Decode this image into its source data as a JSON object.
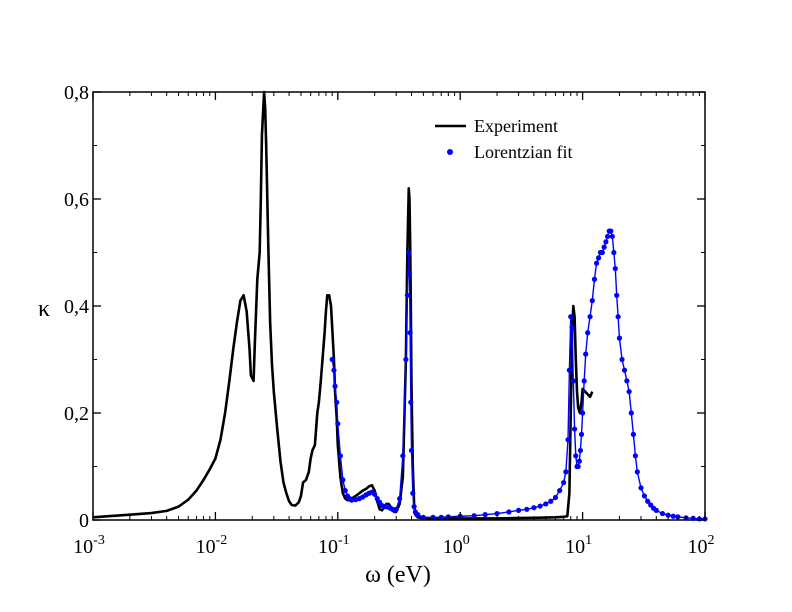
{
  "chart_data": {
    "type": "line",
    "title": "",
    "xlabel": "ω (eV)",
    "ylabel": "κ",
    "xscale": "log",
    "xlim": [
      0.001,
      100
    ],
    "ylim": [
      0,
      0.8
    ],
    "x_ticks": [
      {
        "value": 0.001,
        "base": "10",
        "exp": "-3"
      },
      {
        "value": 0.01,
        "base": "10",
        "exp": "-2"
      },
      {
        "value": 0.1,
        "base": "10",
        "exp": "-1"
      },
      {
        "value": 1,
        "base": "10",
        "exp": "0"
      },
      {
        "value": 10,
        "base": "10",
        "exp": "1"
      },
      {
        "value": 100,
        "base": "10",
        "exp": "2"
      }
    ],
    "y_ticks": [
      {
        "value": 0,
        "label": "0"
      },
      {
        "value": 0.2,
        "label": "0,2"
      },
      {
        "value": 0.4,
        "label": "0,4"
      },
      {
        "value": 0.6,
        "label": "0,6"
      },
      {
        "value": 0.8,
        "label": "0,8"
      }
    ],
    "legend_position": "top-right",
    "grid": false,
    "series": [
      {
        "name": "Experiment",
        "style": "line",
        "color": "#000000",
        "x": [
          0.001,
          0.002,
          0.003,
          0.004,
          0.005,
          0.006,
          0.007,
          0.008,
          0.009,
          0.01,
          0.011,
          0.012,
          0.013,
          0.014,
          0.015,
          0.016,
          0.017,
          0.018,
          0.019,
          0.0195,
          0.0205,
          0.021,
          0.022,
          0.023,
          0.0235,
          0.024,
          0.025,
          0.0255,
          0.026,
          0.027,
          0.028,
          0.029,
          0.03,
          0.032,
          0.034,
          0.036,
          0.038,
          0.04,
          0.042,
          0.045,
          0.048,
          0.05,
          0.052,
          0.055,
          0.058,
          0.06,
          0.062,
          0.065,
          0.068,
          0.07,
          0.072,
          0.075,
          0.078,
          0.08,
          0.082,
          0.085,
          0.088,
          0.09,
          0.093,
          0.095,
          0.098,
          0.1,
          0.105,
          0.11,
          0.115,
          0.12,
          0.125,
          0.13,
          0.14,
          0.15,
          0.16,
          0.17,
          0.18,
          0.19,
          0.2,
          0.21,
          0.22,
          0.23,
          0.24,
          0.25,
          0.26,
          0.27,
          0.28,
          0.29,
          0.3,
          0.32,
          0.34,
          0.36,
          0.37,
          0.38,
          0.385,
          0.39,
          0.395,
          0.4,
          0.41,
          0.42,
          0.43,
          0.45,
          0.5,
          0.7,
          1.0,
          2.0,
          4.0,
          6.0,
          7.0,
          7.5,
          7.8,
          8.0,
          8.2,
          8.4,
          8.6,
          8.8,
          9.0,
          9.2,
          9.5,
          9.8,
          10.0,
          10.5,
          11.0,
          11.5,
          12.0
        ],
        "y": [
          0.005,
          0.01,
          0.013,
          0.017,
          0.025,
          0.038,
          0.055,
          0.075,
          0.095,
          0.115,
          0.15,
          0.2,
          0.26,
          0.32,
          0.37,
          0.41,
          0.42,
          0.39,
          0.32,
          0.27,
          0.26,
          0.33,
          0.45,
          0.5,
          0.6,
          0.72,
          0.8,
          0.77,
          0.7,
          0.52,
          0.37,
          0.29,
          0.24,
          0.17,
          0.11,
          0.07,
          0.05,
          0.035,
          0.028,
          0.027,
          0.033,
          0.045,
          0.07,
          0.075,
          0.09,
          0.115,
          0.13,
          0.14,
          0.2,
          0.22,
          0.25,
          0.3,
          0.35,
          0.39,
          0.42,
          0.42,
          0.4,
          0.36,
          0.3,
          0.24,
          0.19,
          0.14,
          0.08,
          0.05,
          0.04,
          0.037,
          0.037,
          0.04,
          0.045,
          0.05,
          0.055,
          0.058,
          0.063,
          0.065,
          0.055,
          0.035,
          0.02,
          0.018,
          0.025,
          0.03,
          0.03,
          0.025,
          0.018,
          0.015,
          0.015,
          0.03,
          0.08,
          0.3,
          0.5,
          0.62,
          0.6,
          0.52,
          0.4,
          0.25,
          0.1,
          0.03,
          0.01,
          0.005,
          0.003,
          0.003,
          0.003,
          0.003,
          0.004,
          0.005,
          0.006,
          0.007,
          0.05,
          0.2,
          0.35,
          0.4,
          0.38,
          0.3,
          0.24,
          0.21,
          0.2,
          0.22,
          0.245,
          0.24,
          0.235,
          0.23,
          0.24
        ]
      },
      {
        "name": "Lorentzian fit",
        "style": "markers",
        "color": "#0000ff",
        "x": [
          0.09,
          0.093,
          0.095,
          0.098,
          0.1,
          0.105,
          0.11,
          0.115,
          0.12,
          0.125,
          0.13,
          0.14,
          0.15,
          0.16,
          0.17,
          0.18,
          0.19,
          0.2,
          0.21,
          0.22,
          0.23,
          0.24,
          0.25,
          0.26,
          0.27,
          0.28,
          0.29,
          0.3,
          0.32,
          0.34,
          0.36,
          0.37,
          0.38,
          0.385,
          0.39,
          0.395,
          0.4,
          0.41,
          0.42,
          0.43,
          0.45,
          0.5,
          0.6,
          0.7,
          0.8,
          1.0,
          1.3,
          1.6,
          2.0,
          2.5,
          3.0,
          3.5,
          4.0,
          4.5,
          5.0,
          5.5,
          6.0,
          6.5,
          7.0,
          7.3,
          7.6,
          7.8,
          8.0,
          8.2,
          8.4,
          8.6,
          8.8,
          9.0,
          9.2,
          9.4,
          9.6,
          9.8,
          10.0,
          10.3,
          10.6,
          11.0,
          11.5,
          12.0,
          12.5,
          13.0,
          13.5,
          14.0,
          14.5,
          15.0,
          15.5,
          16.0,
          16.5,
          17.0,
          17.5,
          18.0,
          18.5,
          19.0,
          19.5,
          20.0,
          21.0,
          22.0,
          23.0,
          24.0,
          25.0,
          26.0,
          27.0,
          28.0,
          30.0,
          32.0,
          34.0,
          36.0,
          38.0,
          40.0,
          45.0,
          50.0,
          55.0,
          60.0,
          70.0,
          80.0,
          90.0,
          100.0
        ],
        "y": [
          0.3,
          0.28,
          0.25,
          0.22,
          0.18,
          0.12,
          0.075,
          0.055,
          0.045,
          0.04,
          0.037,
          0.038,
          0.04,
          0.043,
          0.047,
          0.05,
          0.052,
          0.048,
          0.04,
          0.033,
          0.027,
          0.025,
          0.025,
          0.024,
          0.022,
          0.02,
          0.018,
          0.02,
          0.04,
          0.12,
          0.3,
          0.42,
          0.5,
          0.46,
          0.35,
          0.22,
          0.13,
          0.05,
          0.025,
          0.015,
          0.01,
          0.005,
          0.005,
          0.005,
          0.006,
          0.007,
          0.008,
          0.01,
          0.012,
          0.015,
          0.018,
          0.02,
          0.023,
          0.026,
          0.03,
          0.035,
          0.042,
          0.055,
          0.07,
          0.09,
          0.15,
          0.28,
          0.38,
          0.36,
          0.26,
          0.17,
          0.12,
          0.1,
          0.1,
          0.11,
          0.13,
          0.16,
          0.2,
          0.26,
          0.31,
          0.35,
          0.38,
          0.41,
          0.45,
          0.48,
          0.49,
          0.5,
          0.5,
          0.51,
          0.52,
          0.53,
          0.54,
          0.54,
          0.53,
          0.5,
          0.47,
          0.42,
          0.38,
          0.34,
          0.3,
          0.28,
          0.26,
          0.24,
          0.2,
          0.16,
          0.12,
          0.09,
          0.06,
          0.045,
          0.035,
          0.028,
          0.022,
          0.018,
          0.012,
          0.009,
          0.007,
          0.006,
          0.004,
          0.003,
          0.002,
          0.002
        ]
      }
    ]
  }
}
